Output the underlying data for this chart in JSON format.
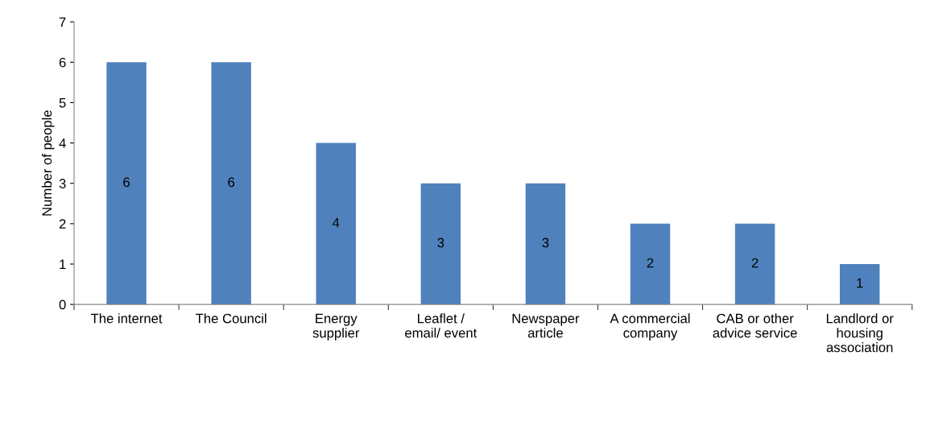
{
  "chart_data": {
    "type": "bar",
    "ylabel": "Number of people",
    "categories": [
      "The internet",
      "The Council",
      "Energy\nsupplier",
      "Leaflet /\nemail/ event",
      "Newspaper\narticle",
      "A commercial\ncompany",
      "CAB or other\nadvice service",
      "Landlord or\nhousing\nassociation"
    ],
    "values": [
      6,
      6,
      4,
      3,
      3,
      2,
      2,
      1
    ],
    "color": "#4f81bd",
    "ylim": [
      0,
      7
    ],
    "yticks": [
      0,
      1,
      2,
      3,
      4,
      5,
      6,
      7
    ],
    "data_labels": true,
    "grid": false,
    "legend": false
  }
}
